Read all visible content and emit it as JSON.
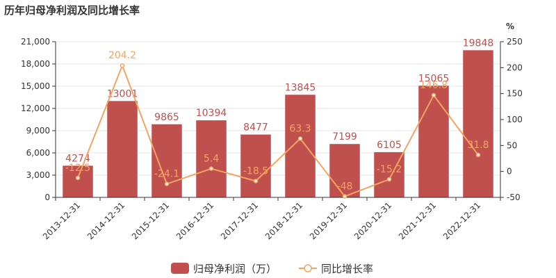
{
  "chart_data": {
    "type": "bar",
    "title": "历年归母净利润及同比增长率",
    "categories": [
      "2013-12-31",
      "2014-12-31",
      "2015-12-31",
      "2016-12-31",
      "2017-12-31",
      "2018-12-31",
      "2019-12-31",
      "2020-12-31",
      "2021-12-31",
      "2022-12-31"
    ],
    "series": [
      {
        "name": "归母净利润（万）",
        "type": "bar",
        "axis": "left",
        "values": [
          4274,
          13001,
          9865,
          10394,
          8477,
          13845,
          7199,
          6105,
          15065,
          19848
        ],
        "labels": [
          "4274",
          "13001",
          "9865",
          "10394",
          "8477",
          "13845",
          "7199",
          "6105",
          "15065",
          "19848"
        ]
      },
      {
        "name": "同比增长率",
        "type": "line",
        "axis": "right",
        "values": [
          -12.5,
          204.2,
          -24.1,
          5.4,
          -18.5,
          63.3,
          -48,
          -15.2,
          146.8,
          31.8
        ],
        "labels": [
          "-12.5",
          "204.2",
          "-24.1",
          "5.4",
          "-18.5",
          "63.3",
          "-48",
          "-15.2",
          "146.8",
          "31.8"
        ]
      }
    ],
    "y_left": {
      "ylim": [
        0,
        21000
      ],
      "ticks": [
        0,
        3000,
        6000,
        9000,
        12000,
        15000,
        18000,
        21000
      ],
      "tick_labels": [
        "0",
        "3,000",
        "6,000",
        "9,000",
        "12,000",
        "15,000",
        "18,000",
        "21,000"
      ]
    },
    "y_right": {
      "label": "%",
      "ylim": [
        -50,
        250
      ],
      "ticks": [
        -50,
        0,
        50,
        100,
        150,
        200,
        250
      ],
      "tick_labels": [
        "-50",
        "0",
        "50",
        "100",
        "150",
        "200",
        "250"
      ]
    },
    "grid": "horizontal",
    "legend_position": "bottom-center",
    "colors": {
      "bar": "#c0504d",
      "line": "#f4a460",
      "bar_label": "#c0504d",
      "line_label": "#f4a460"
    }
  }
}
